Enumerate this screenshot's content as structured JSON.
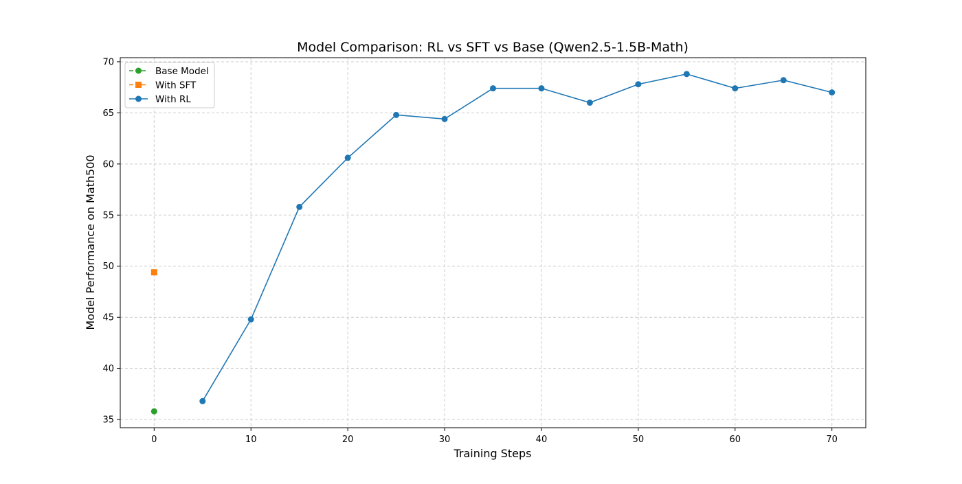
{
  "chart_data": {
    "type": "line",
    "title": "Model Comparison: RL vs SFT vs Base (Qwen2.5-1.5B-Math)",
    "xlabel": "Training Steps",
    "ylabel": "Model Performance on Math500",
    "xlim": [
      -3.5,
      73.5
    ],
    "ylim": [
      34.2,
      70.4
    ],
    "xticks": [
      0,
      10,
      20,
      30,
      40,
      50,
      60,
      70
    ],
    "yticks": [
      35,
      40,
      45,
      50,
      55,
      60,
      65,
      70
    ],
    "grid": true,
    "legend_position": "top-left",
    "series": [
      {
        "name": "Base Model",
        "color": "#2ca02c",
        "marker": "circle",
        "linestyle": "dashed",
        "x": [
          0
        ],
        "y": [
          35.8
        ]
      },
      {
        "name": "With SFT",
        "color": "#ff7f0e",
        "marker": "square",
        "linestyle": "dashed",
        "x": [
          0
        ],
        "y": [
          49.4
        ]
      },
      {
        "name": "With RL",
        "color": "#1f77b4",
        "marker": "circle",
        "linestyle": "solid",
        "x": [
          5,
          10,
          15,
          20,
          25,
          30,
          35,
          40,
          45,
          50,
          55,
          60,
          65,
          70
        ],
        "y": [
          36.8,
          44.8,
          55.8,
          60.6,
          64.8,
          64.4,
          67.4,
          67.4,
          66.0,
          67.8,
          68.8,
          67.4,
          68.2,
          67.0
        ]
      }
    ]
  }
}
